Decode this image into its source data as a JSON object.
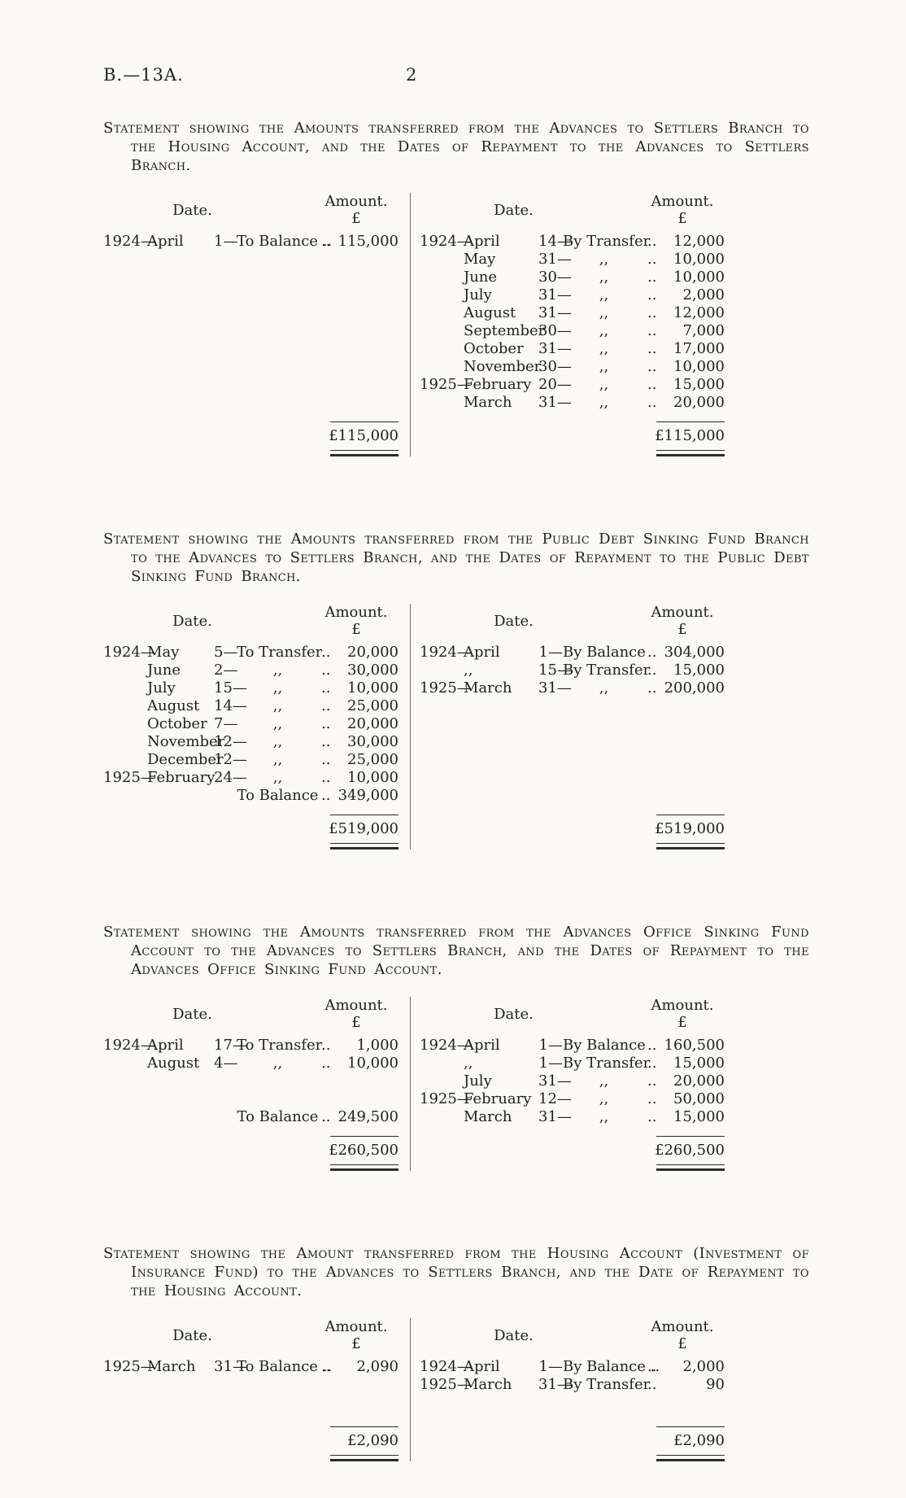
{
  "page": {
    "doc_ref": "B.—13A.",
    "page_number": "2"
  },
  "labels": {
    "date_header": "Date.",
    "amount_header": "Amount.",
    "pound_sign": "£"
  },
  "statements": [
    {
      "heading": "Statement showing the Amounts transferred from the Advances to Settlers Branch to the Housing Account, and the Dates of Repayment to the Advances to Settlers Branch.",
      "left": {
        "rows": [
          [
            "1924—",
            "April",
            "1—",
            "To Balance ..",
            "..",
            "115,000"
          ]
        ],
        "bottom_rows": [],
        "total": "£115,000"
      },
      "right": {
        "rows": [
          [
            "1924—",
            "April",
            "14—",
            "By Transfer",
            "..",
            "12,000"
          ],
          [
            "",
            "May",
            "31—",
            ",,",
            "..",
            "10,000"
          ],
          [
            "",
            "June",
            "30—",
            ",,",
            "..",
            "10,000"
          ],
          [
            "",
            "July",
            "31—",
            ",,",
            "..",
            "2,000"
          ],
          [
            "",
            "August",
            "31—",
            ",,",
            "..",
            "12,000"
          ],
          [
            "",
            "September",
            "30—",
            ",,",
            "..",
            "7,000"
          ],
          [
            "",
            "October",
            "31—",
            ",,",
            "..",
            "17,000"
          ],
          [
            "",
            "November",
            "30—",
            ",,",
            "..",
            "10,000"
          ],
          [
            "1925—",
            "February",
            "20—",
            ",,",
            "..",
            "15,000"
          ],
          [
            "",
            "March",
            "31—",
            ",,",
            "..",
            "20,000"
          ]
        ],
        "bottom_rows": [],
        "total": "£115,000"
      }
    },
    {
      "heading": "Statement showing the Amounts transferred from the Public Debt Sinking Fund Branch to the Advances to Settlers Branch, and the Dates of Repayment to the Public Debt Sinking Fund Branch.",
      "left": {
        "rows": [
          [
            "1924—",
            "May",
            "5—",
            "To Transfer",
            "..",
            "20,000"
          ],
          [
            "",
            "June",
            "2—",
            ",,",
            "..",
            "30,000"
          ],
          [
            "",
            "July",
            "15—",
            ",,",
            "..",
            "10,000"
          ],
          [
            "",
            "August",
            "14—",
            ",,",
            "..",
            "25,000"
          ],
          [
            "",
            "October",
            "7—",
            ",,",
            "..",
            "20,000"
          ],
          [
            "",
            "November",
            "12—",
            ",,",
            "..",
            "30,000"
          ],
          [
            "",
            "December",
            "12—",
            ",,",
            "..",
            "25,000"
          ],
          [
            "1925—",
            "February",
            "24—",
            ",,",
            "..",
            "10,000"
          ],
          [
            "",
            "",
            "",
            "To Balance",
            "..",
            "349,000"
          ]
        ],
        "bottom_rows": [],
        "total": "£519,000"
      },
      "right": {
        "rows": [
          [
            "1924—",
            "April",
            "1—",
            "By Balance",
            "..",
            "304,000"
          ],
          [
            "",
            ",,",
            "15—",
            "By Transfer",
            "..",
            "15,000"
          ],
          [
            "1925—",
            "March",
            "31—",
            ",,",
            "..",
            "200,000"
          ]
        ],
        "bottom_rows": [],
        "total": "£519,000"
      }
    },
    {
      "heading": "Statement showing the Amounts transferred from the Advances Office Sinking Fund Account to the Advances to Settlers Branch, and the Dates of Repayment to the Advances Office Sinking Fund Account.",
      "left": {
        "rows": [
          [
            "1924—",
            "April",
            "17—",
            "To Transfer",
            "..",
            "1,000"
          ],
          [
            "",
            "August",
            "4—",
            ",,",
            "..",
            "10,000"
          ]
        ],
        "bottom_rows": [
          [
            "",
            "",
            "",
            "To Balance",
            "..",
            "249,500"
          ]
        ],
        "total": "£260,500"
      },
      "right": {
        "rows": [
          [
            "1924—",
            "April",
            "1—",
            "By Balance",
            "..",
            "160,500"
          ],
          [
            "",
            ",,",
            "1—",
            "By Transfer",
            "..",
            "15,000"
          ],
          [
            "",
            "July",
            "31—",
            ",,",
            "..",
            "20,000"
          ],
          [
            "1925—",
            "February",
            "12—",
            ",,",
            "..",
            "50,000"
          ],
          [
            "",
            "March",
            "31—",
            ",,",
            "..",
            "15,000"
          ]
        ],
        "bottom_rows": [],
        "total": "£260,500"
      }
    },
    {
      "heading": "Statement showing the Amount transferred from the Housing Account (Investment of Insurance Fund) to the Advances to Settlers Branch, and the Date of Repayment to the Housing Account.",
      "left": {
        "rows": [
          [
            "1925—",
            "March",
            "31—",
            "To Balance ..",
            "..",
            "2,090"
          ]
        ],
        "bottom_rows": [],
        "total": "£2,090"
      },
      "right": {
        "rows": [
          [
            "1924—",
            "April",
            "1—",
            "By Balance ..",
            "..",
            "2,000"
          ],
          [
            "1925—",
            "March",
            "31—",
            "By Transfer",
            "..",
            "90"
          ]
        ],
        "bottom_rows": [],
        "total": "£2,090"
      }
    }
  ]
}
